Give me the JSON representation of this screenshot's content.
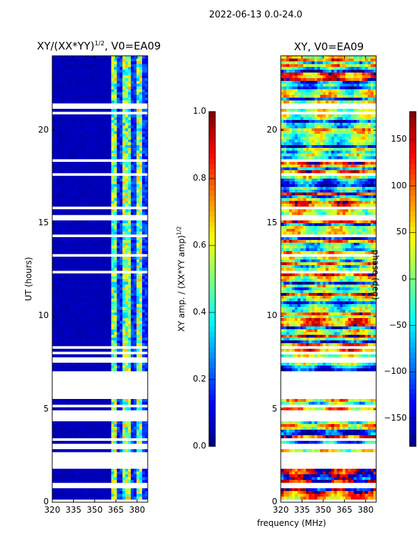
{
  "suptitle": "2022-06-13 0.0-24.0",
  "chart_data": [
    {
      "type": "heatmap",
      "title_main": "XY/(XX*YY)",
      "title_sup": "1/2",
      "title_tail": ", V0=EA09",
      "xlabel": "frequency (MHz)",
      "ylabel": "UT (hours)",
      "xlim": [
        320,
        387.5
      ],
      "ylim": [
        0,
        24
      ],
      "xticks": [
        "320",
        "335",
        "350",
        "365",
        "380"
      ],
      "xtick_values": [
        320,
        335,
        350,
        365,
        380
      ],
      "yticks": [
        "0",
        "5",
        "10",
        "15",
        "20"
      ],
      "ytick_values": [
        0,
        5,
        10,
        15,
        20
      ],
      "colormap": "jet",
      "colorbar": {
        "label_main": "XY amp. / (XX*YY amp)",
        "label_sup": "1/2",
        "range": [
          0.0,
          1.0
        ],
        "ticks": [
          "0.0",
          "0.2",
          "0.4",
          "0.6",
          "0.8",
          "1.0"
        ],
        "tick_values": [
          0.0,
          0.2,
          0.4,
          0.6,
          0.8,
          1.0
        ]
      },
      "value_summary": {
        "below_362MHz": 0.05,
        "362_to_387MHz_range": [
          0.2,
          0.7
        ]
      },
      "missing_ut_ranges": [
        [
          16.9,
          18.3
        ],
        [
          21.3,
          22.2
        ],
        [
          22.9,
          23.2
        ],
        [
          19.0,
          19.6
        ],
        [
          8.6,
          8.8
        ],
        [
          2.6,
          2.8
        ]
      ]
    },
    {
      "type": "heatmap",
      "title": "XY, V0=EA09",
      "xlabel": "frequency (MHz)",
      "ylabel": "phase (deg)",
      "xlim": [
        320,
        387.5
      ],
      "ylim": [
        0,
        24
      ],
      "xticks": [
        "320",
        "335",
        "350",
        "365",
        "380"
      ],
      "xtick_values": [
        320,
        335,
        350,
        365,
        380
      ],
      "yticks": [
        "0",
        "5",
        "10",
        "15",
        "20"
      ],
      "ytick_values": [
        0,
        5,
        10,
        15,
        20
      ],
      "colormap": "jet",
      "colorbar": {
        "range": [
          -180,
          180
        ],
        "ticks": [
          "−150",
          "−100",
          "−50",
          "0",
          "50",
          "100",
          "150"
        ],
        "tick_values": [
          -150,
          -100,
          -50,
          0,
          50,
          100,
          150
        ]
      },
      "value_summary": {
        "range": [
          -180,
          180
        ]
      },
      "missing_ut_ranges": [
        [
          16.9,
          18.3
        ],
        [
          21.3,
          22.2
        ],
        [
          22.9,
          23.2
        ],
        [
          19.0,
          19.6
        ],
        [
          8.6,
          8.8
        ],
        [
          2.6,
          2.8
        ]
      ]
    }
  ]
}
